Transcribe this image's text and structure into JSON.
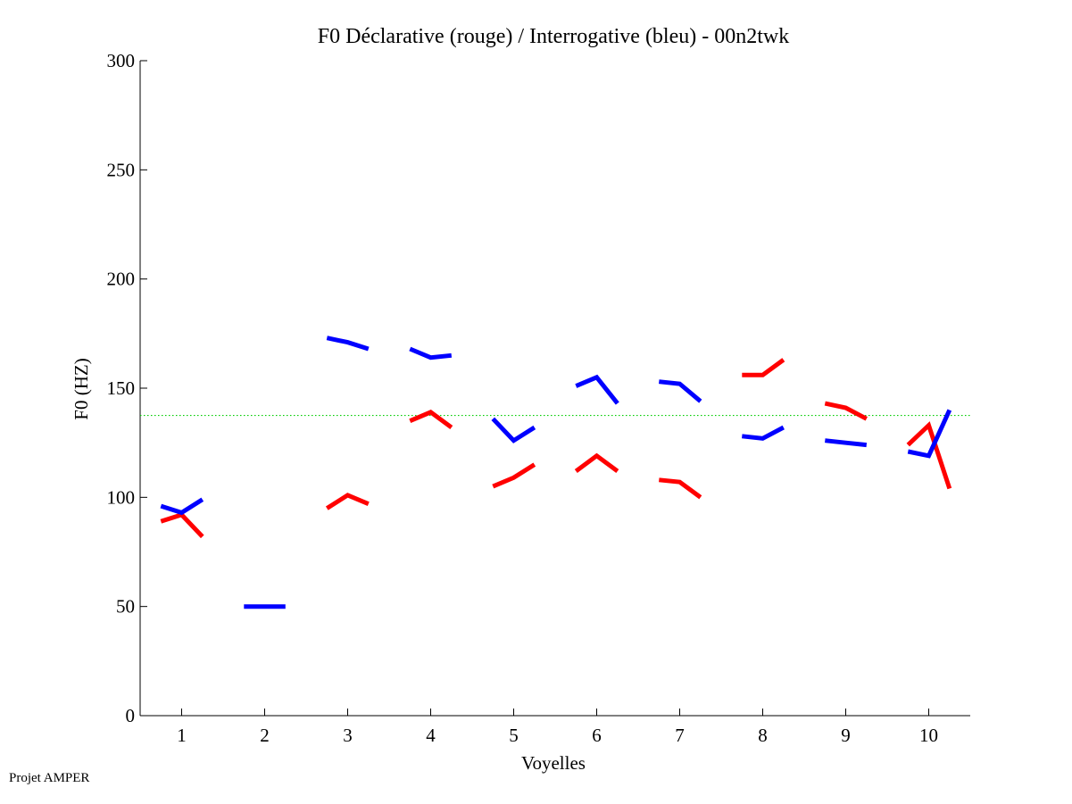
{
  "chart_data": {
    "type": "line",
    "title": "F0 Déclarative (rouge) / Interrogative (bleu) - 00n2twk",
    "xlabel": "Voyelles",
    "ylabel": "F0 (HZ)",
    "xlim": [
      0.5,
      10.5
    ],
    "ylim": [
      0,
      300
    ],
    "xticks": [
      1,
      2,
      3,
      4,
      5,
      6,
      7,
      8,
      9,
      10
    ],
    "yticks": [
      0,
      50,
      100,
      150,
      200,
      250,
      300
    ],
    "grid": false,
    "reference_line": {
      "y": 137.5,
      "color": "#00cc00",
      "style": "dotted"
    },
    "segment_x_offsets": [
      -0.25,
      0,
      0.25
    ],
    "series": [
      {
        "name": "Déclarative",
        "color": "#ff0000",
        "segments": [
          {
            "vowel": 1,
            "values": [
              89,
              92,
              82
            ]
          },
          {
            "vowel": 3,
            "values": [
              95,
              101,
              97
            ]
          },
          {
            "vowel": 4,
            "values": [
              135,
              139,
              132
            ]
          },
          {
            "vowel": 5,
            "values": [
              105,
              109,
              115
            ]
          },
          {
            "vowel": 6,
            "values": [
              112,
              119,
              112
            ]
          },
          {
            "vowel": 7,
            "values": [
              108,
              107,
              100
            ]
          },
          {
            "vowel": 8,
            "values": [
              156,
              156,
              163
            ]
          },
          {
            "vowel": 9,
            "values": [
              143,
              141,
              136
            ]
          },
          {
            "vowel": 10,
            "values": [
              124,
              133,
              104
            ]
          }
        ]
      },
      {
        "name": "Interrogative",
        "color": "#0000ff",
        "segments": [
          {
            "vowel": 1,
            "values": [
              96,
              93,
              99
            ]
          },
          {
            "vowel": 2,
            "values": [
              50,
              50,
              50
            ]
          },
          {
            "vowel": 3,
            "values": [
              173,
              171,
              168
            ]
          },
          {
            "vowel": 4,
            "values": [
              168,
              164,
              165
            ]
          },
          {
            "vowel": 5,
            "values": [
              136,
              126,
              132
            ]
          },
          {
            "vowel": 6,
            "values": [
              151,
              155,
              143
            ]
          },
          {
            "vowel": 7,
            "values": [
              153,
              152,
              144
            ]
          },
          {
            "vowel": 8,
            "values": [
              128,
              127,
              132
            ]
          },
          {
            "vowel": 9,
            "values": [
              126,
              125,
              124
            ]
          },
          {
            "vowel": 10,
            "values": [
              121,
              119,
              140
            ]
          }
        ]
      }
    ]
  },
  "footer": {
    "note": "Projet AMPER"
  }
}
